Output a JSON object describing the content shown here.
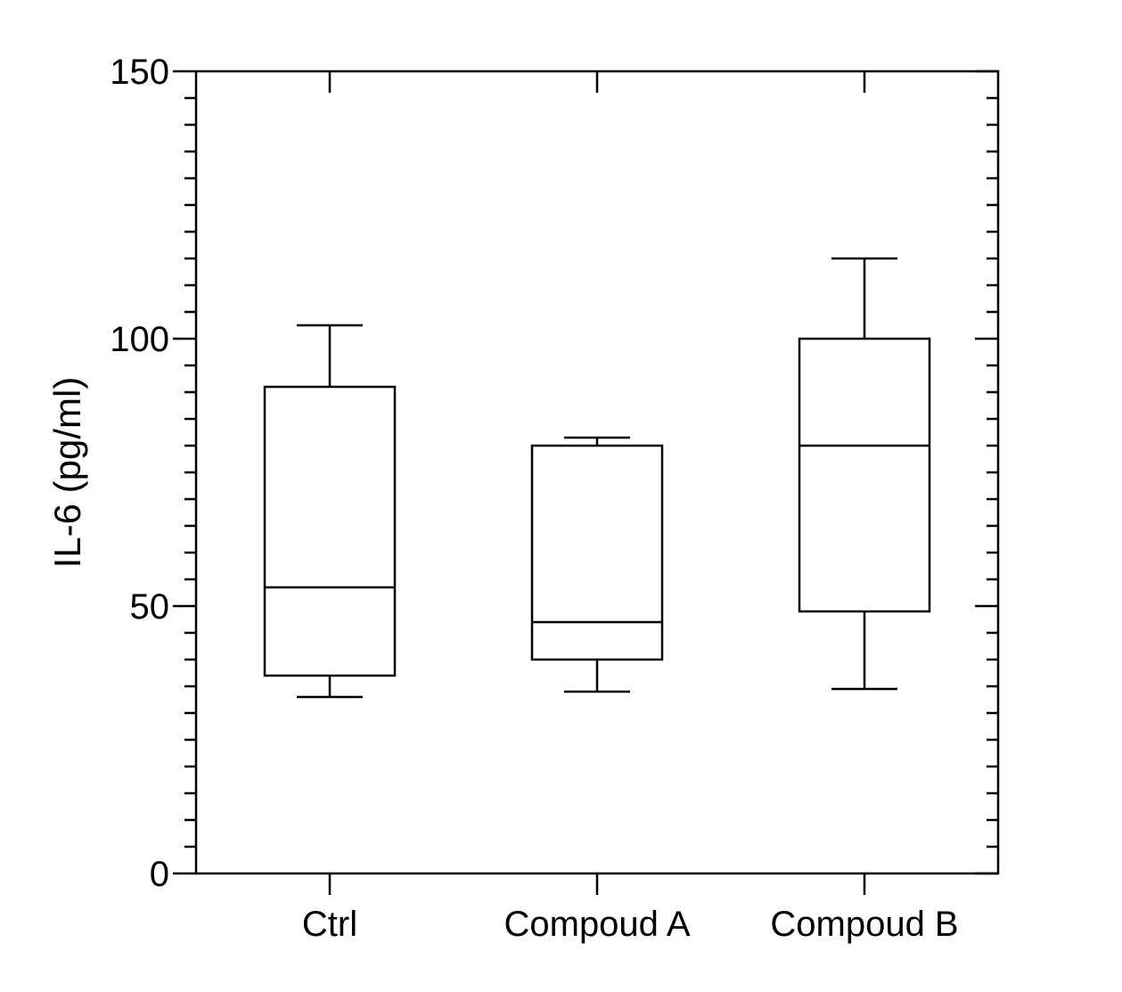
{
  "chart_data": {
    "type": "box",
    "title": "",
    "xlabel": "",
    "ylabel": "IL-6 (pg/ml)",
    "ylim": [
      0,
      150
    ],
    "yticks": [
      0,
      50,
      100,
      150
    ],
    "y_minor_step": 5,
    "categories": [
      "Ctrl",
      "Compoud A",
      "Compoud B"
    ],
    "boxes": [
      {
        "category": "Ctrl",
        "min": 33,
        "q1": 37,
        "median": 53.5,
        "q3": 91,
        "max": 102.5
      },
      {
        "category": "Compoud A",
        "min": 34,
        "q1": 40,
        "median": 47,
        "q3": 80,
        "max": 81.5
      },
      {
        "category": "Compoud B",
        "min": 34.5,
        "q1": 49,
        "median": 80,
        "q3": 100,
        "max": 115
      }
    ],
    "grid": false,
    "legend": "none",
    "colors": {
      "line": "#000000",
      "background": "#ffffff"
    }
  }
}
